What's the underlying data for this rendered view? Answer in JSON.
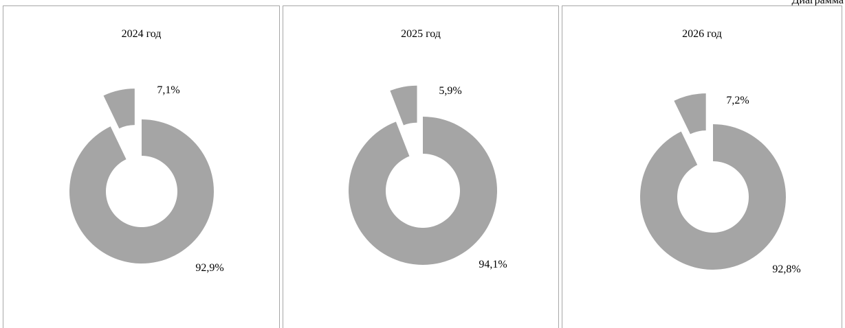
{
  "corner_label": "Диаграмма",
  "chart_data": [
    {
      "type": "pie",
      "title": "2024 год",
      "slices": [
        {
          "value": 92.9,
          "label": "92,9%"
        },
        {
          "value": 7.1,
          "label": "7,1%"
        }
      ],
      "color": "#a5a5a5"
    },
    {
      "type": "pie",
      "title": "2025 год",
      "slices": [
        {
          "value": 94.1,
          "label": "94,1%"
        },
        {
          "value": 5.9,
          "label": "5,9%"
        }
      ],
      "color": "#a5a5a5"
    },
    {
      "type": "pie",
      "title": "2026 год",
      "slices": [
        {
          "value": 92.8,
          "label": "92,8%"
        },
        {
          "value": 7.2,
          "label": "7,2%"
        }
      ],
      "color": "#a5a5a5"
    }
  ]
}
